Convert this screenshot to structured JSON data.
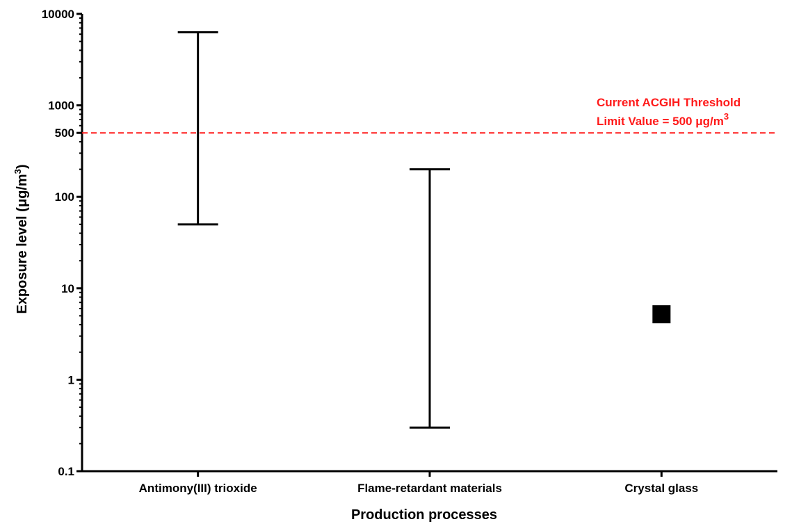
{
  "chart_data": {
    "type": "range",
    "scale": "log",
    "categories": [
      "Antimony(III) trioxide",
      "Flame-retardant materials",
      "Crystal glass"
    ],
    "ranges": [
      {
        "category": "Antimony(III) trioxide",
        "min": 50,
        "max": 6300
      },
      {
        "category": "Flame-retardant materials",
        "min": 0.3,
        "max": 200
      },
      {
        "category": "Crystal glass",
        "min": 5.2,
        "max": 5.2
      }
    ],
    "ylim": [
      0.1,
      10000
    ],
    "y_ticks": [
      0.1,
      1,
      10,
      100,
      500,
      1000,
      10000
    ],
    "y_tick_labels": [
      "0.1",
      "1",
      "10",
      "100",
      "500",
      "1000",
      "10000"
    ],
    "xlabel": "Production processes",
    "ylabel": {
      "prefix": "Exposure level (",
      "mu": "μ",
      "unit": "g/m",
      "sup": "3",
      "suffix": ")"
    },
    "threshold": {
      "value": 500,
      "line1": "Current ACGIH Threshold",
      "line2_prefix": "Limit Value = 500 ",
      "line2_mu": "μ",
      "line2_unit": "g/m",
      "line2_sup": "3",
      "color": "#ff1a1a"
    },
    "colors": {
      "series": "#000000",
      "axis": "#000000"
    },
    "grid": false
  }
}
